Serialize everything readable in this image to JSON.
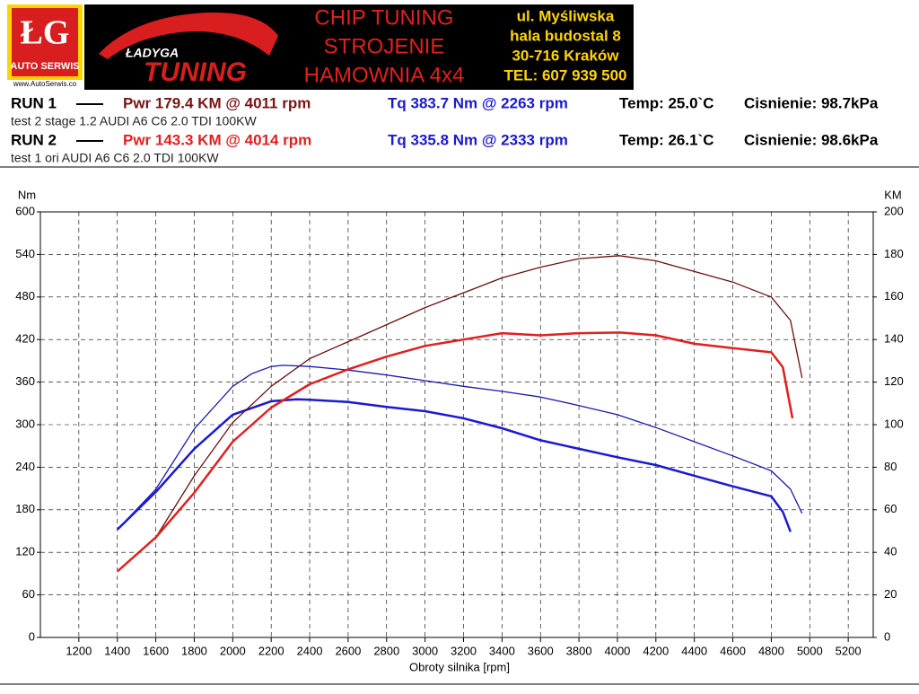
{
  "header": {
    "logo_text": "ŁG",
    "logo_sub": "AUTO SERWIS",
    "website": "www.AutoSerwis.co",
    "brand_top": "ŁADYGA",
    "brand_bottom": "TUNING",
    "services": [
      "CHIP TUNING",
      "STROJENIE",
      "HAMOWNIA 4x4"
    ],
    "address": [
      "ul. Myśliwska",
      "hala budostal 8",
      "30-716 Kraków",
      "TEL: 607 939 500"
    ]
  },
  "runs": [
    {
      "label": "RUN 1",
      "pwr": "Pwr  179.4 KM @ 4011 rpm",
      "tq": "Tq 383.7 Nm @ 2263 rpm",
      "temp": "Temp: 25.0`C",
      "pressure": "Cisnienie: 98.7kPa",
      "description": "test 2 stage 1.2 AUDI A6 C6 2.0 TDI  100KW",
      "pwr_color": "#7a1414",
      "tq_color": "#1a1ad0"
    },
    {
      "label": "RUN 2",
      "pwr": "Pwr  143.3 KM @ 4014 rpm",
      "tq": "Tq 335.8 Nm @ 2333 rpm",
      "temp": "Temp: 26.1`C",
      "pressure": "Cisnienie: 98.6kPa",
      "description": "test 1 ori AUDI A6 C6 2.0 TDI  100KW",
      "pwr_color": "#e02020",
      "tq_color": "#1a1ad0"
    }
  ],
  "chart_data": {
    "type": "line",
    "x_label": "Obroty silnika [rpm]",
    "y_label": "Nm",
    "y2_label": "KM",
    "xlim": [
      1000,
      5330
    ],
    "ylim": [
      0,
      600
    ],
    "y2lim": [
      0,
      200
    ],
    "xticks": [
      1200,
      1400,
      1600,
      1800,
      2000,
      2200,
      2400,
      2600,
      2800,
      3000,
      3200,
      3400,
      3600,
      3800,
      4000,
      4200,
      4400,
      4600,
      4800,
      5000,
      5200
    ],
    "yticks": [
      0,
      60,
      120,
      180,
      240,
      300,
      360,
      420,
      480,
      540,
      600
    ],
    "y2ticks": [
      0,
      20,
      40,
      60,
      80,
      100,
      120,
      140,
      160,
      180,
      200
    ],
    "grid": true,
    "series": [
      {
        "color": "#1a1ab0",
        "width": 1.3,
        "x": [
          1400,
          1600,
          1800,
          2000,
          2100,
          2200,
          2263,
          2400,
          2600,
          2800,
          3000,
          3200,
          3400,
          3600,
          3800,
          4000,
          4200,
          4400,
          4600,
          4800,
          4900,
          4960
        ],
        "values": [
          152,
          209,
          294,
          354,
          372,
          382,
          383.7,
          382,
          377,
          370,
          362,
          354,
          347,
          339,
          327,
          314,
          296,
          276,
          256,
          235,
          209,
          175
        ]
      },
      {
        "color": "#1a1ad0",
        "width": 2.5,
        "x": [
          1400,
          1600,
          1800,
          2000,
          2200,
          2333,
          2400,
          2600,
          2800,
          3000,
          3200,
          3400,
          3600,
          3800,
          4000,
          4200,
          4400,
          4600,
          4800,
          4860,
          4900
        ],
        "values": [
          152,
          205,
          266,
          314,
          333,
          335.8,
          335,
          332,
          325,
          319,
          309,
          295,
          278,
          266,
          254,
          243,
          228,
          213,
          199,
          177,
          149
        ]
      },
      {
        "color": "#6b0f0f",
        "width": 1.3,
        "axis": "y2",
        "x": [
          1400,
          1600,
          1800,
          2000,
          2200,
          2400,
          2600,
          2800,
          3000,
          3200,
          3400,
          3600,
          3800,
          4011,
          4200,
          4400,
          4600,
          4800,
          4900,
          4960
        ],
        "values": [
          31,
          47,
          76,
          101,
          118,
          131,
          139,
          147,
          155,
          162,
          169,
          174,
          178,
          179.4,
          177,
          172,
          167,
          160,
          149,
          122
        ]
      },
      {
        "color": "#e02020",
        "width": 2.5,
        "axis": "y2",
        "x": [
          1400,
          1600,
          1800,
          2000,
          2200,
          2400,
          2600,
          2800,
          3000,
          3200,
          3400,
          3600,
          3800,
          4014,
          4200,
          4400,
          4600,
          4800,
          4860,
          4910
        ],
        "values": [
          31,
          47,
          68,
          92,
          108,
          119,
          126,
          132,
          137,
          140,
          143,
          142,
          143,
          143.3,
          142,
          138,
          136,
          134,
          127,
          103
        ]
      }
    ]
  }
}
